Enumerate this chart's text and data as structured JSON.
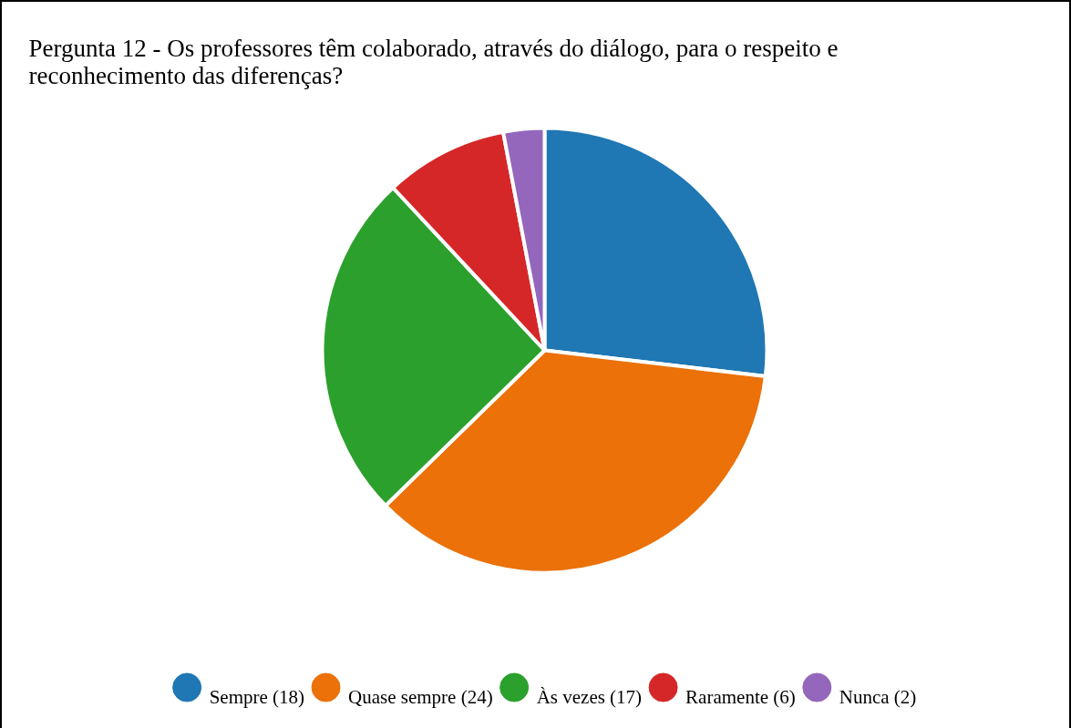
{
  "chart_data": {
    "type": "pie",
    "title": "Pergunta 12 - Os professores têm colaborado, através do diálogo, para o respeito e reconhecimento das diferenças?",
    "categories": [
      "Sempre (18)",
      "Quase sempre (24)",
      "Às vezes (17)",
      "Raramente (6)",
      "Nunca (2)"
    ],
    "values": [
      18,
      24,
      17,
      6,
      2
    ],
    "colors": [
      "#1f77b4",
      "#eb7108",
      "#2ca02c",
      "#d62728",
      "#9467bd"
    ],
    "legend": "bottom"
  }
}
